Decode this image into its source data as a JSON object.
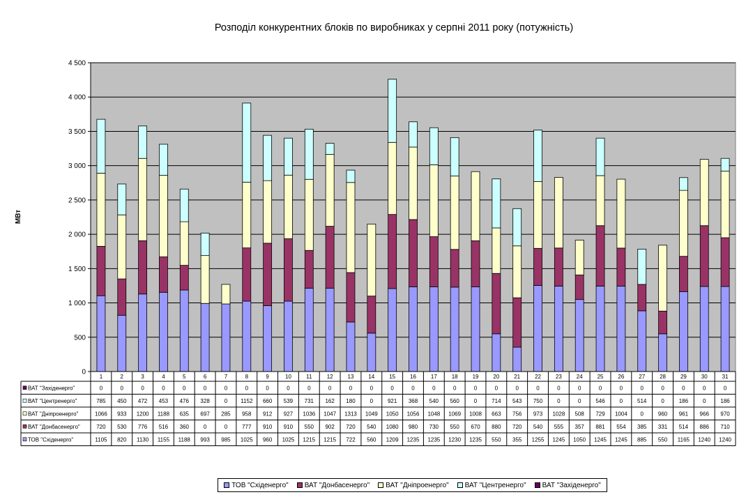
{
  "chart_data": {
    "type": "bar",
    "stacked": true,
    "title": "Розподіл конкурентних блоків по виробниках у серпні 2011 року (потужність)",
    "xlabel": "",
    "ylabel": "МВт",
    "ylim": [
      0,
      4500
    ],
    "yticks": [
      "0",
      "500",
      "1 000",
      "1 500",
      "2 000",
      "2 500",
      "3 000",
      "3 500",
      "4 000",
      "4 500"
    ],
    "grid": true,
    "legend_position": "bottom",
    "categories": [
      "1",
      "2",
      "3",
      "4",
      "5",
      "6",
      "7",
      "8",
      "9",
      "10",
      "11",
      "12",
      "13",
      "14",
      "15",
      "16",
      "17",
      "18",
      "19",
      "20",
      "21",
      "22",
      "23",
      "24",
      "25",
      "26",
      "27",
      "28",
      "29",
      "30",
      "31"
    ],
    "series": [
      {
        "name": "ТОВ \"Східенерго\"",
        "color": "#9999ff",
        "values": [
          1105,
          820,
          1130,
          1155,
          1188,
          993,
          985,
          1025,
          960,
          1025,
          1215,
          1215,
          722,
          560,
          1209,
          1235,
          1235,
          1230,
          1235,
          550,
          355,
          1255,
          1245,
          1050,
          1245,
          1245,
          885,
          550,
          1165,
          1240,
          1240
        ]
      },
      {
        "name": "ВАТ \"Донбасенерго\"",
        "color": "#993366",
        "values": [
          720,
          530,
          776,
          516,
          360,
          0,
          0,
          777,
          910,
          910,
          550,
          902,
          720,
          540,
          1080,
          980,
          730,
          550,
          670,
          880,
          720,
          540,
          555,
          357,
          881,
          554,
          385,
          331,
          514,
          886,
          710
        ]
      },
      {
        "name": "ВАТ \"Дніпроенерго\"",
        "color": "#ffffcc",
        "values": [
          1066,
          933,
          1200,
          1188,
          635,
          697,
          285,
          958,
          912,
          927,
          1036,
          1047,
          1313,
          1049,
          1050,
          1056,
          1048,
          1069,
          1008,
          663,
          756,
          973,
          1028,
          508,
          729,
          1004,
          0,
          960,
          961,
          966,
          970
        ]
      },
      {
        "name": "ВАТ \"Центренерго\"",
        "color": "#ccffff",
        "values": [
          785,
          450,
          472,
          453,
          476,
          328,
          0,
          1152,
          660,
          539,
          731,
          162,
          180,
          0,
          921,
          368,
          540,
          560,
          0,
          714,
          543,
          750,
          0,
          0,
          546,
          0,
          514,
          0,
          186,
          0,
          186
        ]
      },
      {
        "name": "ВАТ \"Західенерго\"",
        "color": "#660066",
        "values": [
          0,
          0,
          0,
          0,
          0,
          0,
          0,
          0,
          0,
          0,
          0,
          0,
          0,
          0,
          0,
          0,
          0,
          0,
          0,
          0,
          0,
          0,
          0,
          0,
          0,
          0,
          0,
          0,
          0,
          0,
          0
        ]
      }
    ]
  }
}
